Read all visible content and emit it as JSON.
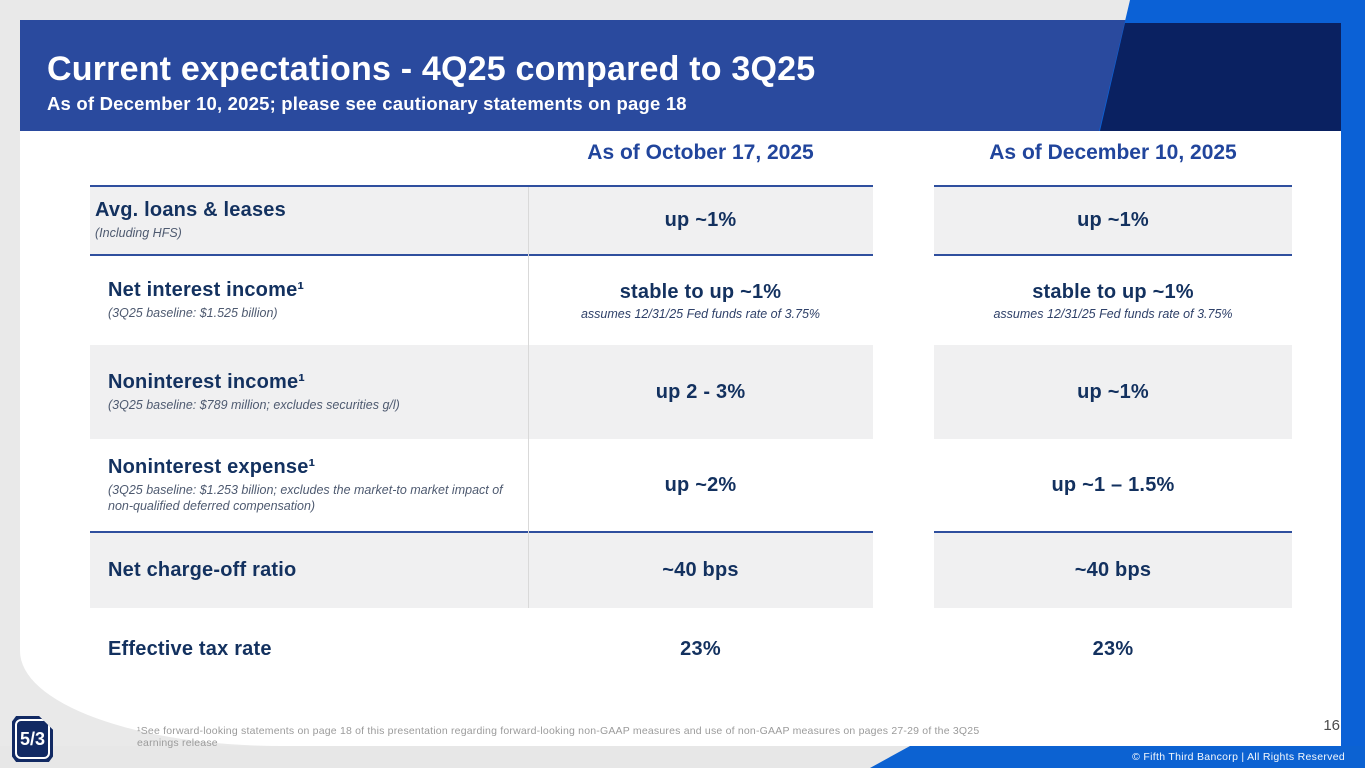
{
  "slide": {
    "title": "Current expectations - 4Q25 compared to 3Q25",
    "subtitle": "As of December 10, 2025; please see cautionary statements on page 18",
    "page_number": "16",
    "footnote": "¹See forward-looking statements on page 18 of this presentation regarding forward-looking non-GAAP measures and use of non-GAAP measures on pages 27-29 of the 3Q25 earnings release",
    "copyright": "© Fifth Third Bancorp | All Rights Reserved",
    "logo": "5/3"
  },
  "colors": {
    "header_blue": "#2a4a9e",
    "corner_navy": "#0a2161",
    "accent_bright_blue": "#0b61d6",
    "cell_gray": "#f0f0f1",
    "text_navy": "#13315f",
    "column_header_text": "#21459c",
    "rule_blue": "#2f4f9e",
    "footnote_gray": "#9b9b9b"
  },
  "table": {
    "col_headers": [
      {
        "label": "As of October 17, 2025"
      },
      {
        "label": "As of December 10, 2025"
      }
    ],
    "rows": [
      {
        "label": "Avg. loans & leases",
        "sub": "(Including HFS)",
        "oct": "up ~1%",
        "dec": "up ~1%"
      },
      {
        "label": "Net interest income¹",
        "sub": "(3Q25 baseline: $1.525 billion)",
        "oct": "stable to up ~1%",
        "oct_sub": "assumes 12/31/25 Fed funds rate of 3.75%",
        "dec": "stable to up ~1%",
        "dec_sub": "assumes 12/31/25 Fed funds rate of 3.75%"
      },
      {
        "label": "Noninterest income¹",
        "sub": "(3Q25 baseline: $789 million; excludes securities g/l)",
        "oct": "up 2 - 3%",
        "dec": "up ~1%"
      },
      {
        "label": "Noninterest expense¹",
        "sub": "(3Q25 baseline: $1.253 billion; excludes the market-to market impact of non-qualified deferred compensation)",
        "oct": "up ~2%",
        "dec": "up ~1 – 1.5%"
      },
      {
        "label": "Net charge-off ratio",
        "oct": "~40 bps",
        "dec": "~40 bps"
      },
      {
        "label": "Effective tax rate",
        "oct": "23%",
        "dec": "23%"
      }
    ]
  }
}
